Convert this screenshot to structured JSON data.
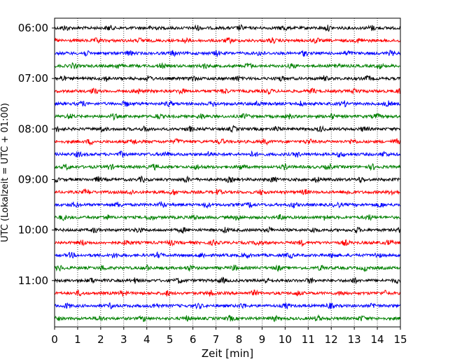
{
  "chart_data": {
    "type": "line",
    "title": "",
    "xlabel": "Zeit  [min]",
    "ylabel": "UTC (Lokalzeit = UTC + 01:00)",
    "xlim": [
      0,
      15
    ],
    "x_ticks": [
      0,
      1,
      2,
      3,
      4,
      5,
      6,
      7,
      8,
      9,
      10,
      11,
      12,
      13,
      14,
      15
    ],
    "x_grid": true,
    "y_tick_labels": [
      "06:00",
      "07:00",
      "08:00",
      "09:00",
      "10:00",
      "11:00"
    ],
    "trace_start_times": [
      "06:00",
      "06:15",
      "06:30",
      "06:45",
      "07:00",
      "07:15",
      "07:30",
      "07:45",
      "08:00",
      "08:15",
      "08:30",
      "08:45",
      "09:00",
      "09:15",
      "09:30",
      "09:45",
      "10:00",
      "10:15",
      "10:30",
      "10:45",
      "11:00",
      "11:15",
      "11:30",
      "11:45"
    ],
    "trace_minutes_per_line": 15,
    "color_cycle": [
      "#000000",
      "#ff0000",
      "#0000ff",
      "#008000"
    ]
  }
}
